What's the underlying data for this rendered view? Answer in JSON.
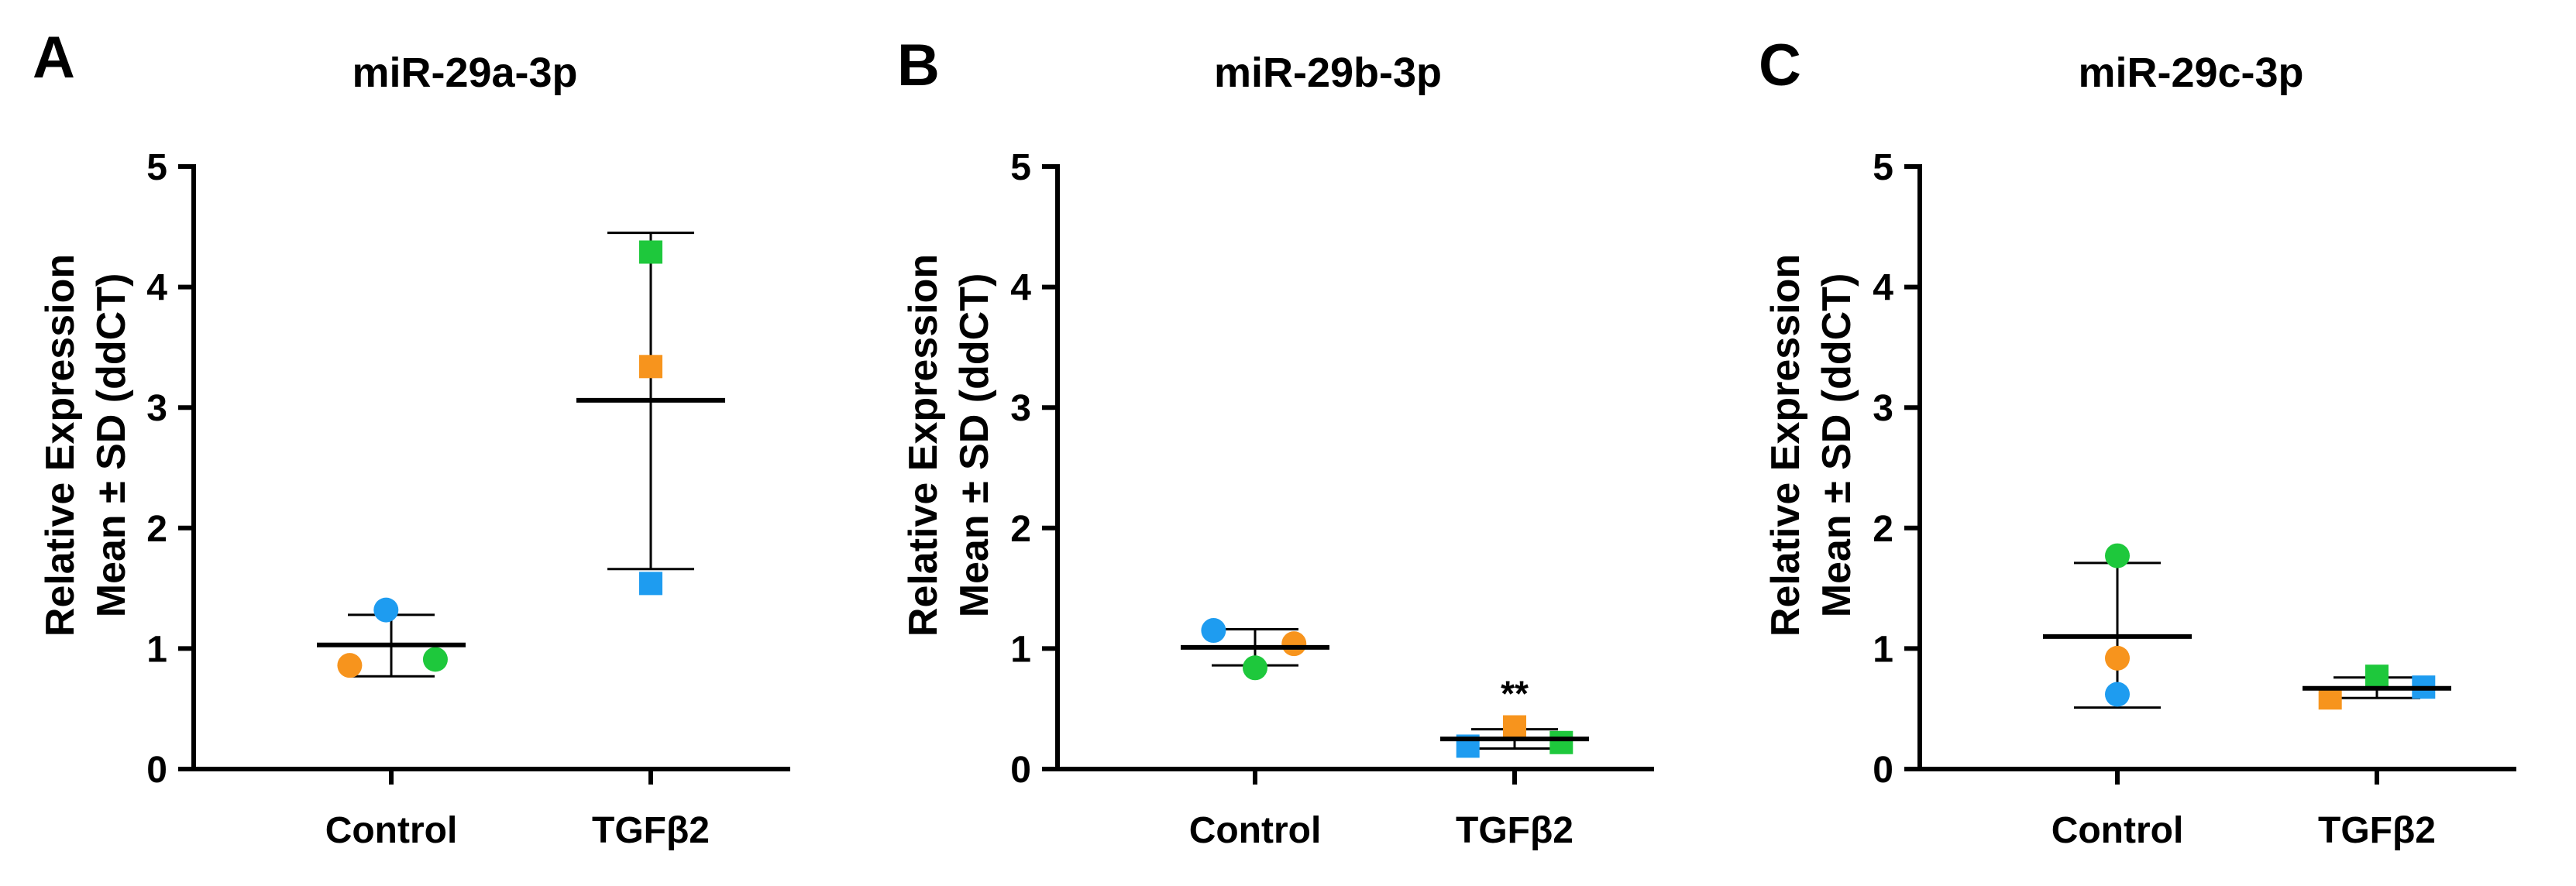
{
  "chart_data": [
    {
      "type": "scatter",
      "panel": "A",
      "title": "miR-29a-3p",
      "ylabel_lines": [
        "Relative Expression",
        "Mean ± SD (ddCT)"
      ],
      "categories": [
        "Control",
        "TGFβ2"
      ],
      "ylim": [
        0,
        5
      ],
      "yticks": [
        0,
        1,
        2,
        3,
        4,
        5
      ],
      "groups": [
        {
          "name": "Control",
          "mean": 1.03,
          "sd_low": 0.77,
          "sd_high": 1.28,
          "points": [
            {
              "y": 1.32,
              "color": "#1e9cf0",
              "marker": "circle",
              "jitter": -0.02
            },
            {
              "y": 0.86,
              "color": "#f7941d",
              "marker": "circle",
              "jitter": -0.16
            },
            {
              "y": 0.91,
              "color": "#1ec83c",
              "marker": "circle",
              "jitter": 0.17
            }
          ],
          "annotation": ""
        },
        {
          "name": "TGFβ2",
          "mean": 3.06,
          "sd_low": 1.66,
          "sd_high": 4.45,
          "points": [
            {
              "y": 4.29,
              "color": "#1ec83c",
              "marker": "square",
              "jitter": 0.0
            },
            {
              "y": 3.34,
              "color": "#f7941d",
              "marker": "square",
              "jitter": 0.0
            },
            {
              "y": 1.54,
              "color": "#1e9cf0",
              "marker": "square",
              "jitter": 0.0
            }
          ],
          "annotation": ""
        }
      ]
    },
    {
      "type": "scatter",
      "panel": "B",
      "title": "miR-29b-3p",
      "ylabel_lines": [
        "Relative Expression",
        "Mean ± SD (ddCT)"
      ],
      "categories": [
        "Control",
        "TGFβ2"
      ],
      "ylim": [
        0,
        5
      ],
      "yticks": [
        0,
        1,
        2,
        3,
        4,
        5
      ],
      "groups": [
        {
          "name": "Control",
          "mean": 1.01,
          "sd_low": 0.86,
          "sd_high": 1.16,
          "points": [
            {
              "y": 1.15,
              "color": "#1e9cf0",
              "marker": "circle",
              "jitter": -0.16
            },
            {
              "y": 1.04,
              "color": "#f7941d",
              "marker": "circle",
              "jitter": 0.15
            },
            {
              "y": 0.84,
              "color": "#1ec83c",
              "marker": "circle",
              "jitter": 0.0
            }
          ],
          "annotation": ""
        },
        {
          "name": "TGFβ2",
          "mean": 0.25,
          "sd_low": 0.17,
          "sd_high": 0.33,
          "points": [
            {
              "y": 0.35,
              "color": "#f7941d",
              "marker": "square",
              "jitter": 0.0
            },
            {
              "y": 0.19,
              "color": "#1e9cf0",
              "marker": "square",
              "jitter": -0.18
            },
            {
              "y": 0.22,
              "color": "#1ec83c",
              "marker": "square",
              "jitter": 0.18
            }
          ],
          "annotation": "**"
        }
      ]
    },
    {
      "type": "scatter",
      "panel": "C",
      "title": "miR-29c-3p",
      "ylabel_lines": [
        "Relative Expression",
        "Mean ± SD (ddCT)"
      ],
      "categories": [
        "Control",
        "TGFβ2"
      ],
      "ylim": [
        0,
        5
      ],
      "yticks": [
        0,
        1,
        2,
        3,
        4,
        5
      ],
      "groups": [
        {
          "name": "Control",
          "mean": 1.1,
          "sd_low": 0.51,
          "sd_high": 1.71,
          "points": [
            {
              "y": 1.77,
              "color": "#1ec83c",
              "marker": "circle",
              "jitter": 0.0
            },
            {
              "y": 0.92,
              "color": "#f7941d",
              "marker": "circle",
              "jitter": 0.0
            },
            {
              "y": 0.62,
              "color": "#1e9cf0",
              "marker": "circle",
              "jitter": 0.0
            }
          ],
          "annotation": ""
        },
        {
          "name": "TGFβ2",
          "mean": 0.67,
          "sd_low": 0.59,
          "sd_high": 0.76,
          "points": [
            {
              "y": 0.77,
              "color": "#1ec83c",
              "marker": "square",
              "jitter": 0.0
            },
            {
              "y": 0.59,
              "color": "#f7941d",
              "marker": "square",
              "jitter": -0.18
            },
            {
              "y": 0.68,
              "color": "#1e9cf0",
              "marker": "square",
              "jitter": 0.18
            }
          ],
          "annotation": ""
        }
      ]
    }
  ]
}
